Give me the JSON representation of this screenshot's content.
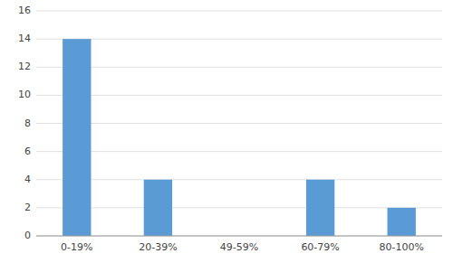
{
  "chart_data": {
    "type": "bar",
    "categories": [
      "0-19%",
      "20-39%",
      "49-59%",
      "60-79%",
      "80-100%"
    ],
    "values": [
      14,
      4,
      0,
      4,
      2
    ],
    "color": "#5b9bd5",
    "ylim": [
      0,
      16
    ],
    "yticks": [
      0,
      2,
      4,
      6,
      8,
      10,
      12,
      14,
      16
    ],
    "grid": true
  }
}
